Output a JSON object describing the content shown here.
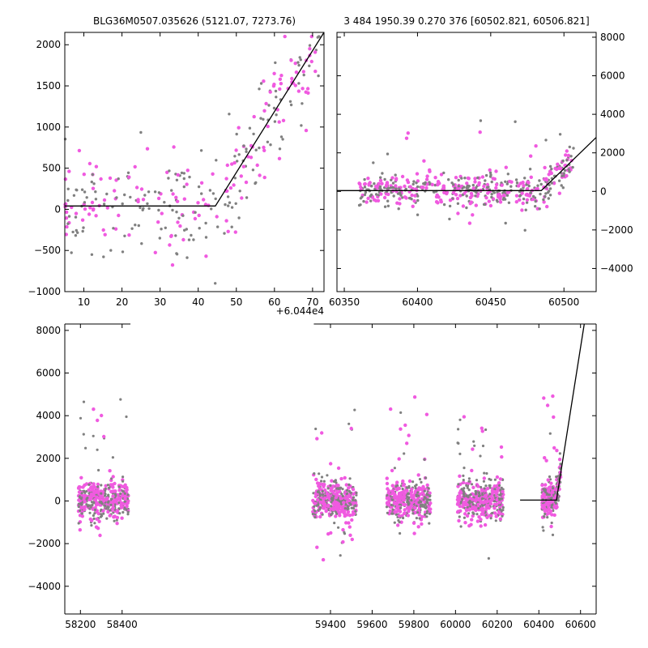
{
  "colors": {
    "magenta": "#f05ae0",
    "gray": "#808080",
    "line": "#000000"
  },
  "chart_data": [
    {
      "type": "scatter",
      "title": "BLG36M0507.035626 (5121.07, 7273.76)",
      "x_offset_label": "+6.044e4",
      "xlim": [
        5,
        73
      ],
      "ylim": [
        -1000,
        2150
      ],
      "xticks": [
        "10",
        "20",
        "30",
        "40",
        "50",
        "60",
        "70"
      ],
      "xtick_values": [
        10,
        20,
        30,
        40,
        50,
        60,
        70
      ],
      "yticks": [
        "2000",
        "1500",
        "1000",
        "500",
        "0",
        "−500",
        "−1000"
      ],
      "ytick_values": [
        2000,
        1500,
        1000,
        500,
        0,
        -500,
        -1000
      ],
      "fit_line": [
        [
          5,
          40
        ],
        [
          44.5,
          40
        ],
        [
          73,
          2150
        ]
      ]
    },
    {
      "type": "scatter",
      "title": "3 484 1950.39 0.270 376 [60502.821, 60506.821]",
      "xlim": [
        60345,
        60522
      ],
      "ylim": [
        -5200,
        8250
      ],
      "xticks": [
        "60350",
        "60400",
        "60450",
        "60500"
      ],
      "xtick_values": [
        60350,
        60400,
        60450,
        60500
      ],
      "yticks": [
        "8000",
        "6000",
        "4000",
        "2000",
        "0",
        "−2000",
        "−4000"
      ],
      "ytick_values": [
        8000,
        6000,
        4000,
        2000,
        0,
        -2000,
        -4000
      ],
      "fit_line": [
        [
          60345,
          40
        ],
        [
          60484.5,
          40
        ],
        [
          60522,
          2800
        ]
      ]
    },
    {
      "type": "scatter",
      "title": "",
      "xlim": [
        58125,
        60675
      ],
      "ylim": [
        -5300,
        8300
      ],
      "xticks": [
        "58200",
        "58400",
        "59400",
        "59600",
        "59800",
        "60000",
        "60200",
        "60400",
        "60600"
      ],
      "xtick_values": [
        58200,
        58400,
        59400,
        59600,
        59800,
        60000,
        60200,
        60400,
        60600
      ],
      "yticks": [
        "8000",
        "6000",
        "4000",
        "2000",
        "0",
        "−2000",
        "−4000"
      ],
      "ytick_values": [
        8000,
        6000,
        4000,
        2000,
        0,
        -2000,
        -4000
      ],
      "segments": [
        {
          "xmin": 58120,
          "xmax": 58440
        },
        {
          "xmin": 59320,
          "xmax": 60675
        }
      ],
      "clusters": [
        {
          "center": 58310,
          "width": 240,
          "n": 420
        },
        {
          "center": 59420,
          "width": 210,
          "n": 420
        },
        {
          "center": 59775,
          "width": 210,
          "n": 400
        },
        {
          "center": 60120,
          "width": 220,
          "n": 420
        },
        {
          "center": 60460,
          "width": 90,
          "n": 260
        }
      ],
      "fit_line": [
        [
          60310,
          40
        ],
        [
          60484.5,
          40
        ],
        [
          60618,
          8300
        ]
      ]
    }
  ]
}
